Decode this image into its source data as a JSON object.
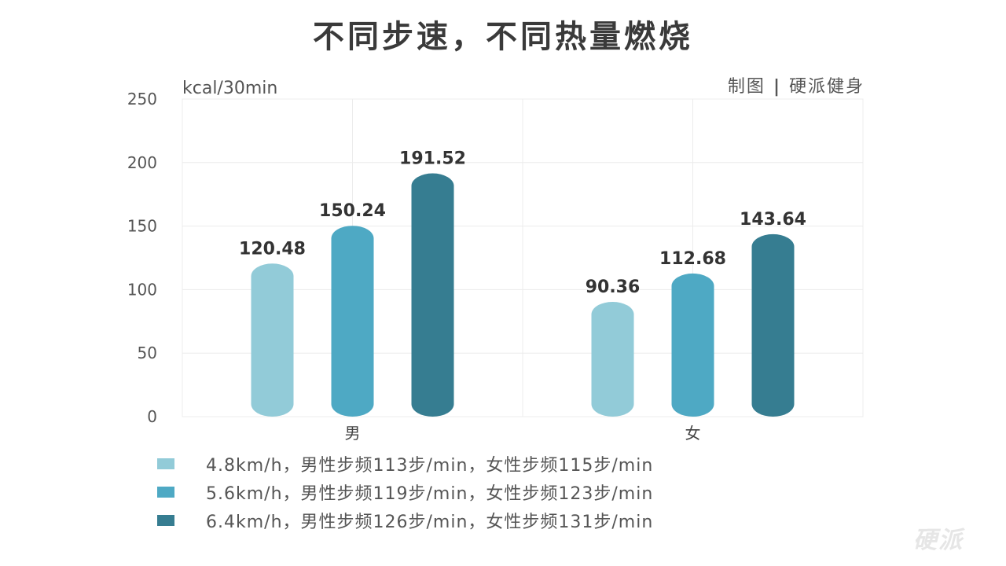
{
  "title": "不同步速，不同热量燃烧",
  "credit": {
    "label": "制图",
    "separator": "|",
    "source": "硬派健身"
  },
  "watermark": "硬派",
  "chart_data": {
    "type": "bar",
    "categories": [
      "男",
      "女"
    ],
    "ylabel": "kcal/30min",
    "ylim": [
      0,
      250
    ],
    "yticks": [
      0,
      50,
      100,
      150,
      200,
      250
    ],
    "grid": true,
    "legend_position": "bottom",
    "series": [
      {
        "name": "4.8km/h，男性步频113步/min，女性步频115步/min",
        "color": "#92cbd8",
        "values": [
          120.48,
          90.36
        ],
        "labels": [
          "120.48",
          "90.36"
        ]
      },
      {
        "name": "5.6km/h，男性步频119步/min，女性步频123步/min",
        "color": "#4ea9c4",
        "values": [
          150.24,
          112.68
        ],
        "labels": [
          "150.24",
          "112.68"
        ]
      },
      {
        "name": "6.4km/h，男性步频126步/min，女性步频131步/min",
        "color": "#367d91",
        "values": [
          191.52,
          143.64
        ],
        "labels": [
          "191.52",
          "143.64"
        ]
      }
    ]
  }
}
